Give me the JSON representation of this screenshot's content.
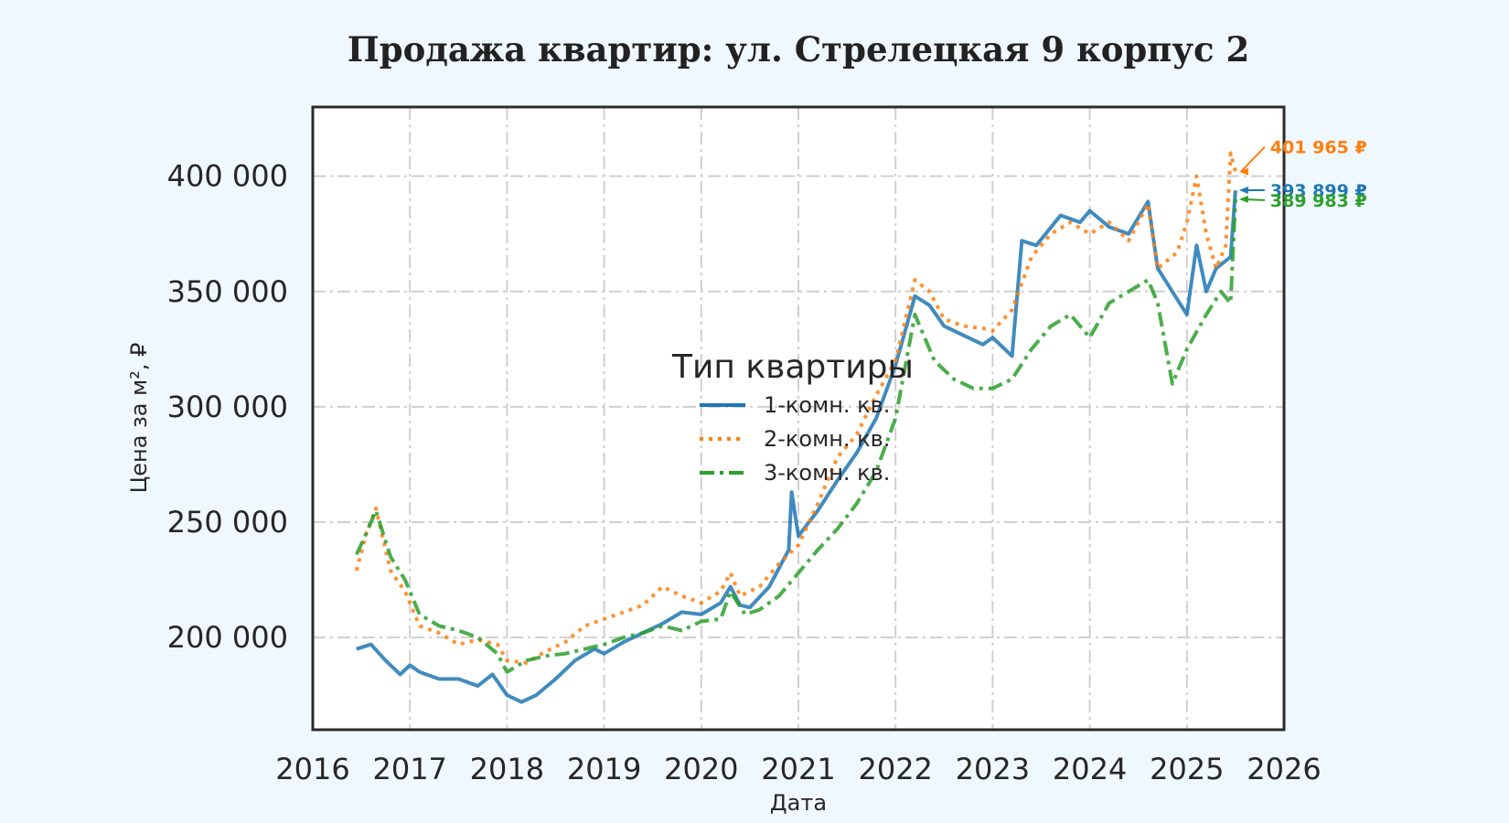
{
  "chart_data": {
    "type": "line",
    "title": "Продажа квартир: ул. Стрелецкая 9 корпус 2",
    "xlabel": "Дата",
    "ylabel": "Цена за м², ₽",
    "xlim": [
      2016.0,
      2026.0
    ],
    "ylim": [
      160000,
      430000
    ],
    "x_ticks": [
      "2016",
      "2017",
      "2018",
      "2019",
      "2020",
      "2021",
      "2022",
      "2023",
      "2024",
      "2025",
      "2026"
    ],
    "y_ticks": [
      "200 000",
      "250 000",
      "300 000",
      "350 000",
      "400 000"
    ],
    "grid": true,
    "legend": {
      "title": "Тип квартиры",
      "placement": "center"
    },
    "series": [
      {
        "name": "1-комн. кв.",
        "color": "#1f77b4",
        "style": "solid",
        "end_label": "393 899 ₽",
        "x": [
          2016.45,
          2016.6,
          2016.75,
          2016.9,
          2017.0,
          2017.1,
          2017.3,
          2017.5,
          2017.7,
          2017.85,
          2018.0,
          2018.15,
          2018.3,
          2018.5,
          2018.7,
          2018.9,
          2019.0,
          2019.2,
          2019.4,
          2019.6,
          2019.8,
          2020.0,
          2020.2,
          2020.3,
          2020.4,
          2020.5,
          2020.7,
          2020.9,
          2020.93,
          2021.0,
          2021.2,
          2021.4,
          2021.6,
          2021.8,
          2022.0,
          2022.2,
          2022.35,
          2022.5,
          2022.7,
          2022.9,
          2023.0,
          2023.2,
          2023.3,
          2023.45,
          2023.7,
          2023.9,
          2024.0,
          2024.2,
          2024.4,
          2024.6,
          2024.7,
          2024.85,
          2025.0,
          2025.1,
          2025.2,
          2025.3,
          2025.45,
          2025.5
        ],
        "y": [
          195000,
          197000,
          190000,
          184000,
          188000,
          185000,
          182000,
          182000,
          179000,
          184000,
          175000,
          172000,
          175000,
          182000,
          190000,
          195000,
          193000,
          198000,
          202000,
          206000,
          211000,
          210000,
          215000,
          222000,
          214000,
          213000,
          222000,
          238000,
          263000,
          244000,
          255000,
          268000,
          280000,
          295000,
          318000,
          348000,
          344000,
          335000,
          331000,
          327000,
          330000,
          322000,
          372000,
          370000,
          383000,
          380000,
          385000,
          378000,
          375000,
          389000,
          360000,
          350000,
          340000,
          370000,
          350000,
          360000,
          365000,
          393899
        ]
      },
      {
        "name": "2-комн. кв.",
        "color": "#ff7f0e",
        "style": "dotted",
        "end_label": "401 965 ₽",
        "x": [
          2016.45,
          2016.55,
          2016.65,
          2016.8,
          2016.95,
          2017.1,
          2017.3,
          2017.5,
          2017.7,
          2017.9,
          2018.0,
          2018.2,
          2018.4,
          2018.6,
          2018.8,
          2019.0,
          2019.2,
          2019.4,
          2019.6,
          2019.8,
          2020.0,
          2020.2,
          2020.3,
          2020.4,
          2020.6,
          2020.8,
          2021.0,
          2021.2,
          2021.4,
          2021.6,
          2021.8,
          2022.0,
          2022.2,
          2022.35,
          2022.5,
          2022.7,
          2022.9,
          2023.0,
          2023.2,
          2023.4,
          2023.6,
          2023.8,
          2024.0,
          2024.2,
          2024.4,
          2024.6,
          2024.7,
          2024.9,
          2025.0,
          2025.1,
          2025.2,
          2025.3,
          2025.4,
          2025.45,
          2025.5
        ],
        "y": [
          229000,
          245000,
          256000,
          229000,
          220000,
          205000,
          202000,
          197000,
          199000,
          197000,
          190000,
          189000,
          194000,
          198000,
          205000,
          208000,
          211000,
          214000,
          222000,
          218000,
          215000,
          220000,
          228000,
          218000,
          222000,
          232000,
          240000,
          258000,
          278000,
          288000,
          305000,
          320000,
          355000,
          350000,
          338000,
          335000,
          334000,
          333000,
          342000,
          365000,
          375000,
          380000,
          375000,
          380000,
          372000,
          388000,
          360000,
          367000,
          380000,
          400000,
          375000,
          360000,
          370000,
          410000,
          401965
        ]
      },
      {
        "name": "3-комн. кв.",
        "color": "#2ca02c",
        "style": "dashdot",
        "end_label": "389 983 ₽",
        "x": [
          2016.45,
          2016.55,
          2016.65,
          2016.8,
          2016.95,
          2017.1,
          2017.3,
          2017.5,
          2017.7,
          2017.9,
          2018.0,
          2018.2,
          2018.4,
          2018.6,
          2018.8,
          2019.0,
          2019.2,
          2019.4,
          2019.6,
          2019.8,
          2020.0,
          2020.2,
          2020.3,
          2020.45,
          2020.6,
          2020.8,
          2021.0,
          2021.2,
          2021.4,
          2021.6,
          2021.8,
          2022.0,
          2022.2,
          2022.4,
          2022.6,
          2022.8,
          2023.0,
          2023.2,
          2023.4,
          2023.6,
          2023.8,
          2024.0,
          2024.2,
          2024.4,
          2024.6,
          2024.7,
          2024.85,
          2025.0,
          2025.2,
          2025.35,
          2025.45,
          2025.5
        ],
        "y": [
          236000,
          245000,
          255000,
          235000,
          225000,
          210000,
          205000,
          203000,
          200000,
          193000,
          185000,
          190000,
          192000,
          193000,
          195000,
          197000,
          200000,
          202000,
          205000,
          203000,
          207000,
          208000,
          220000,
          210000,
          212000,
          218000,
          228000,
          238000,
          247000,
          258000,
          272000,
          295000,
          340000,
          320000,
          312000,
          308000,
          308000,
          312000,
          325000,
          335000,
          340000,
          330000,
          345000,
          350000,
          355000,
          345000,
          310000,
          325000,
          340000,
          350000,
          345000,
          389983
        ]
      }
    ]
  }
}
